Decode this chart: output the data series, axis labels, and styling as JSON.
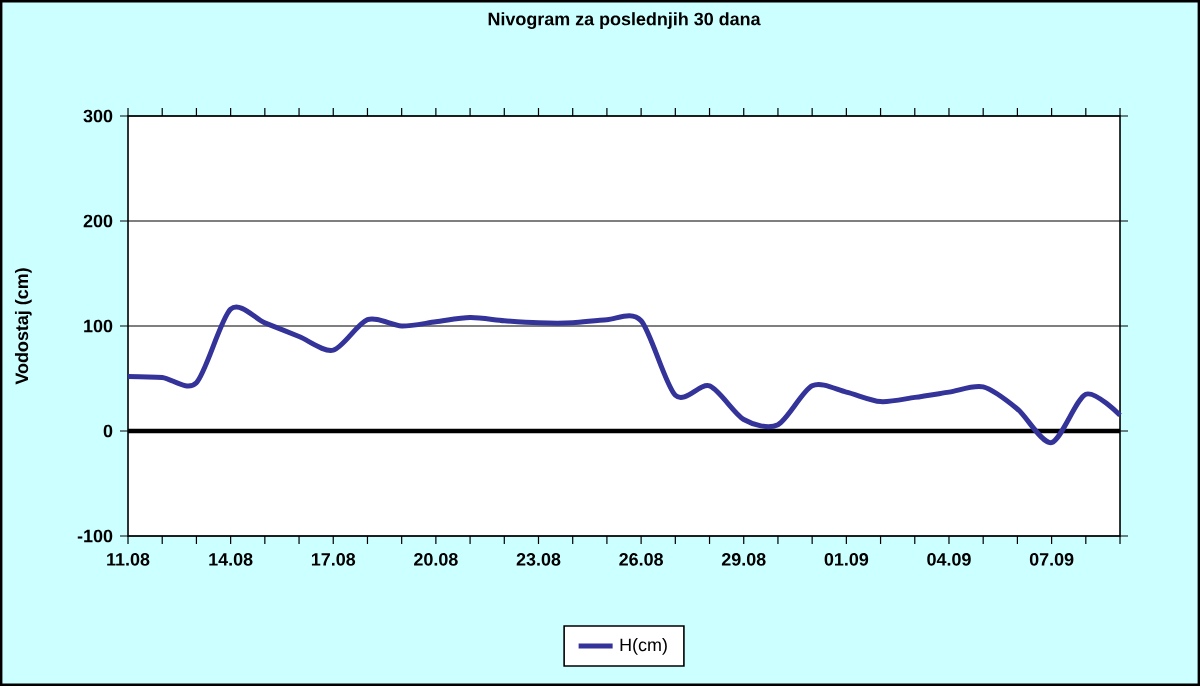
{
  "chart_data": {
    "type": "line",
    "title": "Nivogram za poslednjih 30 dana",
    "ylabel": "Vodostaj (cm)",
    "categories": [
      "11.08",
      null,
      null,
      "14.08",
      null,
      null,
      "17.08",
      null,
      null,
      "20.08",
      null,
      null,
      "23.08",
      null,
      null,
      "26.08",
      null,
      null,
      "29.08",
      null,
      null,
      "01.09",
      null,
      null,
      "04.09",
      null,
      null,
      "07.09",
      null,
      null
    ],
    "series": [
      {
        "name": "H(cm)",
        "color": "#333399",
        "values": [
          52,
          51,
          46,
          116,
          103,
          90,
          77,
          106,
          100,
          104,
          108,
          105,
          103,
          103,
          106,
          105,
          34,
          43,
          11,
          6,
          43,
          37,
          28,
          32,
          37,
          42,
          21,
          -11,
          35,
          15
        ]
      }
    ],
    "ylim": [
      -100,
      300
    ],
    "yticks": [
      -100,
      0,
      100,
      200,
      300
    ],
    "grid": "y",
    "legend": "bottom",
    "marker": "none",
    "line_style": "solid",
    "ref_lines": [
      {
        "axis": "y",
        "value": 0,
        "color": "#000000"
      }
    ]
  }
}
